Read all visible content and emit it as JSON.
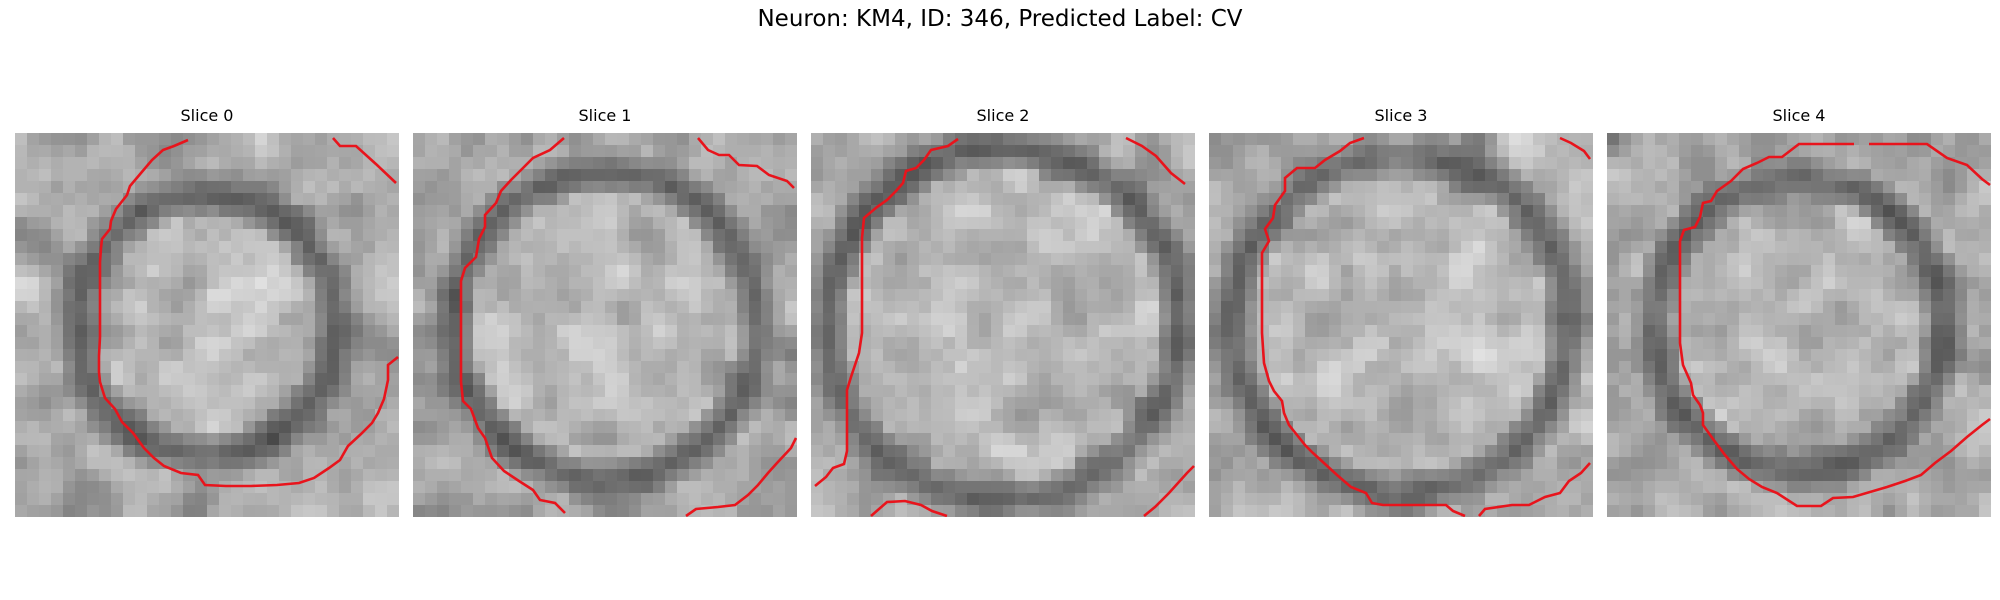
{
  "figure": {
    "title": "Neuron: KM4, ID: 346, Predicted Label: CV",
    "contour_color": "#e8141c"
  },
  "panels": [
    {
      "title": "Slice 0",
      "seed": 11,
      "ring": 0.34
    },
    {
      "title": "Slice 1",
      "seed": 23,
      "ring": 0.4
    },
    {
      "title": "Slice 2",
      "seed": 37,
      "ring": 0.46
    },
    {
      "title": "Slice 3",
      "seed": 41,
      "ring": 0.44
    },
    {
      "title": "Slice 4",
      "seed": 59,
      "ring": 0.38
    }
  ]
}
